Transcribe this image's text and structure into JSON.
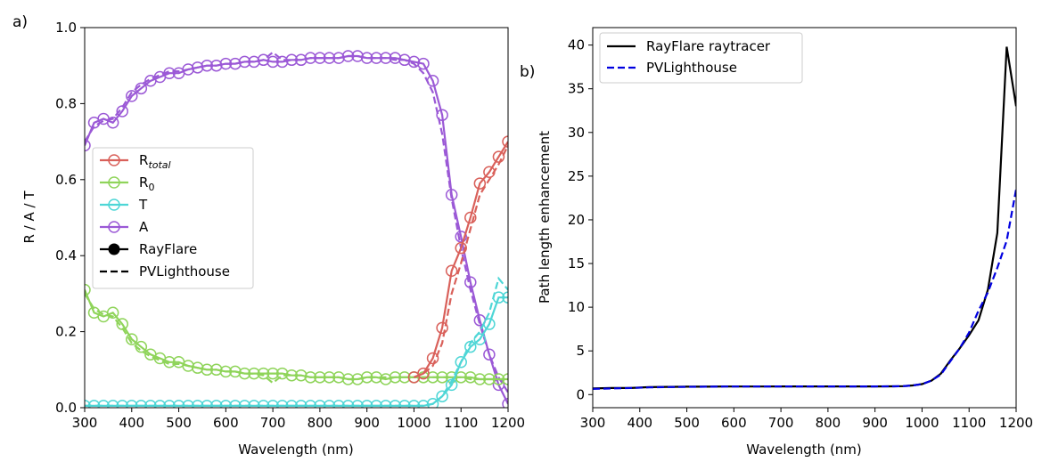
{
  "chart_data": [
    {
      "type": "line",
      "panel_label": "a)",
      "xlabel": "Wavelength (nm)",
      "ylabel": "R / A / T",
      "xlim": [
        300,
        1200
      ],
      "ylim": [
        0,
        1.0
      ],
      "xticks": [
        "300",
        "400",
        "500",
        "600",
        "700",
        "800",
        "900",
        "1000",
        "1100",
        "1200"
      ],
      "yticks": [
        "0.0",
        "0.2",
        "0.4",
        "0.6",
        "0.8",
        "1.0"
      ],
      "grid": false,
      "legend_position": "center-left",
      "legend": [
        {
          "label": "R",
          "sub": "total",
          "sub_italic": true,
          "color": "#d9605a",
          "style": "marker"
        },
        {
          "label": "R",
          "sub": "0",
          "sub_italic": false,
          "color": "#8fd45a",
          "style": "marker"
        },
        {
          "label": "T",
          "sub": "",
          "sub_italic": false,
          "color": "#4ed6d6",
          "style": "marker"
        },
        {
          "label": "A",
          "sub": "",
          "sub_italic": false,
          "color": "#9b59d6",
          "style": "marker"
        },
        {
          "label": "RayFlare",
          "sub": "",
          "sub_italic": false,
          "color": "#000000",
          "style": "solid-filled"
        },
        {
          "label": "PVLighthouse",
          "sub": "",
          "sub_italic": false,
          "color": "#000000",
          "style": "dashed"
        }
      ],
      "series": [
        {
          "name": "A",
          "color": "#9b59d6",
          "rayflare": {
            "x": [
              300,
              320,
              340,
              360,
              380,
              400,
              420,
              440,
              460,
              480,
              500,
              520,
              540,
              560,
              580,
              600,
              620,
              640,
              660,
              680,
              700,
              720,
              740,
              760,
              780,
              800,
              820,
              840,
              860,
              880,
              900,
              920,
              940,
              960,
              980,
              1000,
              1020,
              1040,
              1060,
              1080,
              1100,
              1120,
              1140,
              1160,
              1180,
              1200
            ],
            "y": [
              0.69,
              0.75,
              0.76,
              0.75,
              0.78,
              0.82,
              0.84,
              0.86,
              0.87,
              0.88,
              0.88,
              0.89,
              0.895,
              0.9,
              0.9,
              0.905,
              0.905,
              0.91,
              0.91,
              0.915,
              0.91,
              0.91,
              0.915,
              0.915,
              0.92,
              0.92,
              0.92,
              0.92,
              0.925,
              0.925,
              0.92,
              0.92,
              0.92,
              0.92,
              0.915,
              0.91,
              0.905,
              0.86,
              0.77,
              0.56,
              0.45,
              0.33,
              0.23,
              0.14,
              0.06,
              0.01
            ]
          },
          "pvlighthouse": {
            "x": [
              300,
              320,
              340,
              360,
              380,
              400,
              420,
              440,
              460,
              480,
              500,
              520,
              540,
              560,
              580,
              600,
              620,
              640,
              660,
              680,
              700,
              720,
              740,
              760,
              780,
              800,
              820,
              840,
              860,
              880,
              900,
              920,
              940,
              960,
              980,
              1000,
              1020,
              1040,
              1060,
              1080,
              1100,
              1120,
              1140,
              1160,
              1180,
              1200
            ],
            "y": [
              0.7,
              0.74,
              0.755,
              0.76,
              0.79,
              0.83,
              0.85,
              0.865,
              0.875,
              0.885,
              0.885,
              0.89,
              0.895,
              0.9,
              0.9,
              0.905,
              0.905,
              0.91,
              0.91,
              0.915,
              0.935,
              0.915,
              0.915,
              0.915,
              0.92,
              0.92,
              0.92,
              0.92,
              0.925,
              0.925,
              0.92,
              0.92,
              0.92,
              0.915,
              0.915,
              0.905,
              0.88,
              0.83,
              0.72,
              0.55,
              0.42,
              0.31,
              0.22,
              0.14,
              0.08,
              0.04
            ]
          }
        },
        {
          "name": "R0",
          "color": "#8fd45a",
          "rayflare": {
            "x": [
              300,
              320,
              340,
              360,
              380,
              400,
              420,
              440,
              460,
              480,
              500,
              520,
              540,
              560,
              580,
              600,
              620,
              640,
              660,
              680,
              700,
              720,
              740,
              760,
              780,
              800,
              820,
              840,
              860,
              880,
              900,
              920,
              940,
              960,
              980,
              1000,
              1020,
              1040,
              1060,
              1080,
              1100,
              1120,
              1140,
              1160,
              1180,
              1200
            ],
            "y": [
              0.31,
              0.25,
              0.24,
              0.25,
              0.22,
              0.18,
              0.16,
              0.14,
              0.13,
              0.12,
              0.12,
              0.11,
              0.105,
              0.1,
              0.1,
              0.095,
              0.095,
              0.09,
              0.09,
              0.09,
              0.09,
              0.09,
              0.085,
              0.085,
              0.08,
              0.08,
              0.08,
              0.08,
              0.075,
              0.075,
              0.08,
              0.08,
              0.075,
              0.08,
              0.08,
              0.08,
              0.08,
              0.08,
              0.08,
              0.08,
              0.08,
              0.08,
              0.075,
              0.075,
              0.075,
              0.075
            ]
          },
          "pvlighthouse": {
            "x": [
              300,
              320,
              340,
              360,
              380,
              400,
              420,
              440,
              460,
              480,
              500,
              520,
              540,
              560,
              580,
              600,
              620,
              640,
              660,
              680,
              700,
              720,
              740,
              760,
              780,
              800,
              820,
              840,
              860,
              880,
              900,
              920,
              940,
              960,
              980,
              1000,
              1020,
              1040,
              1060,
              1080,
              1100,
              1120,
              1140,
              1160,
              1180,
              1200
            ],
            "y": [
              0.3,
              0.26,
              0.245,
              0.24,
              0.21,
              0.17,
              0.15,
              0.135,
              0.125,
              0.115,
              0.115,
              0.11,
              0.105,
              0.1,
              0.1,
              0.095,
              0.095,
              0.09,
              0.09,
              0.085,
              0.065,
              0.085,
              0.085,
              0.085,
              0.08,
              0.08,
              0.08,
              0.08,
              0.075,
              0.075,
              0.08,
              0.08,
              0.08,
              0.08,
              0.08,
              0.08,
              0.08,
              0.08,
              0.08,
              0.08,
              0.08,
              0.075,
              0.075,
              0.075,
              0.075,
              0.075
            ]
          }
        },
        {
          "name": "T",
          "color": "#4ed6d6",
          "rayflare": {
            "x": [
              300,
              320,
              340,
              360,
              380,
              400,
              420,
              440,
              460,
              480,
              500,
              520,
              540,
              560,
              580,
              600,
              620,
              640,
              660,
              680,
              700,
              720,
              740,
              760,
              780,
              800,
              820,
              840,
              860,
              880,
              900,
              920,
              940,
              960,
              980,
              1000,
              1020,
              1040,
              1060,
              1080,
              1100,
              1120,
              1140,
              1160,
              1180,
              1200
            ],
            "y": [
              0.005,
              0.005,
              0.005,
              0.005,
              0.005,
              0.005,
              0.005,
              0.005,
              0.005,
              0.005,
              0.005,
              0.005,
              0.005,
              0.005,
              0.005,
              0.005,
              0.005,
              0.005,
              0.005,
              0.005,
              0.005,
              0.005,
              0.005,
              0.005,
              0.005,
              0.005,
              0.005,
              0.005,
              0.005,
              0.005,
              0.005,
              0.005,
              0.005,
              0.005,
              0.005,
              0.005,
              0.005,
              0.01,
              0.03,
              0.06,
              0.12,
              0.16,
              0.18,
              0.22,
              0.29,
              0.29
            ]
          },
          "pvlighthouse": {
            "x": [
              300,
              400,
              500,
              600,
              700,
              800,
              900,
              1000,
              1020,
              1040,
              1060,
              1080,
              1100,
              1120,
              1140,
              1160,
              1180,
              1200
            ],
            "y": [
              0.005,
              0.005,
              0.005,
              0.005,
              0.005,
              0.005,
              0.005,
              0.005,
              0.005,
              0.01,
              0.03,
              0.07,
              0.12,
              0.17,
              0.2,
              0.25,
              0.34,
              0.31
            ]
          }
        },
        {
          "name": "Rtotal",
          "color": "#d9605a",
          "rayflare": {
            "x": [
              1000,
              1020,
              1040,
              1060,
              1080,
              1100,
              1120,
              1140,
              1160,
              1180,
              1200
            ],
            "y": [
              0.08,
              0.09,
              0.13,
              0.21,
              0.36,
              0.42,
              0.5,
              0.59,
              0.62,
              0.66,
              0.7
            ]
          },
          "pvlighthouse": {
            "x": [
              1000,
              1020,
              1040,
              1060,
              1080,
              1100,
              1120,
              1140,
              1160,
              1180,
              1200
            ],
            "y": [
              0.08,
              0.09,
              0.11,
              0.17,
              0.3,
              0.38,
              0.47,
              0.56,
              0.6,
              0.64,
              0.69
            ]
          }
        }
      ]
    },
    {
      "type": "line",
      "panel_label": "b)",
      "xlabel": "Wavelength (nm)",
      "ylabel": "Path length enhancement",
      "xlim": [
        300,
        1200
      ],
      "ylim": [
        -1.5,
        42
      ],
      "xticks": [
        "300",
        "400",
        "500",
        "600",
        "700",
        "800",
        "900",
        "1000",
        "1100",
        "1200"
      ],
      "yticks": [
        "0",
        "5",
        "10",
        "15",
        "20",
        "25",
        "30",
        "35",
        "40"
      ],
      "grid": false,
      "legend_position": "top-left",
      "series": [
        {
          "name": "RayFlare raytracer",
          "color": "#000000",
          "style": "solid",
          "x": [
            300,
            340,
            380,
            420,
            460,
            500,
            540,
            580,
            620,
            660,
            700,
            740,
            780,
            820,
            860,
            900,
            940,
            960,
            980,
            1000,
            1020,
            1040,
            1060,
            1080,
            1100,
            1120,
            1140,
            1160,
            1180,
            1200
          ],
          "y": [
            0.7,
            0.75,
            0.75,
            0.85,
            0.88,
            0.9,
            0.9,
            0.92,
            0.92,
            0.92,
            0.93,
            0.93,
            0.93,
            0.93,
            0.93,
            0.93,
            0.95,
            0.97,
            1.05,
            1.2,
            1.6,
            2.4,
            3.9,
            5.3,
            6.8,
            8.5,
            12,
            18.5,
            39.8,
            33
          ]
        },
        {
          "name": "PVLighthouse",
          "color": "#0000e0",
          "style": "dashed",
          "x": [
            300,
            340,
            380,
            420,
            460,
            500,
            540,
            580,
            620,
            660,
            700,
            740,
            780,
            820,
            860,
            900,
            940,
            960,
            980,
            1000,
            1020,
            1040,
            1060,
            1080,
            1100,
            1120,
            1140,
            1160,
            1180,
            1200
          ],
          "y": [
            0.65,
            0.7,
            0.75,
            0.82,
            0.86,
            0.88,
            0.9,
            0.92,
            0.92,
            0.92,
            0.93,
            0.93,
            0.93,
            0.93,
            0.93,
            0.93,
            0.95,
            0.97,
            1.05,
            1.2,
            1.6,
            2.3,
            3.8,
            5.3,
            7.1,
            9.6,
            11.7,
            14.5,
            17.6,
            23.5
          ]
        }
      ]
    }
  ]
}
